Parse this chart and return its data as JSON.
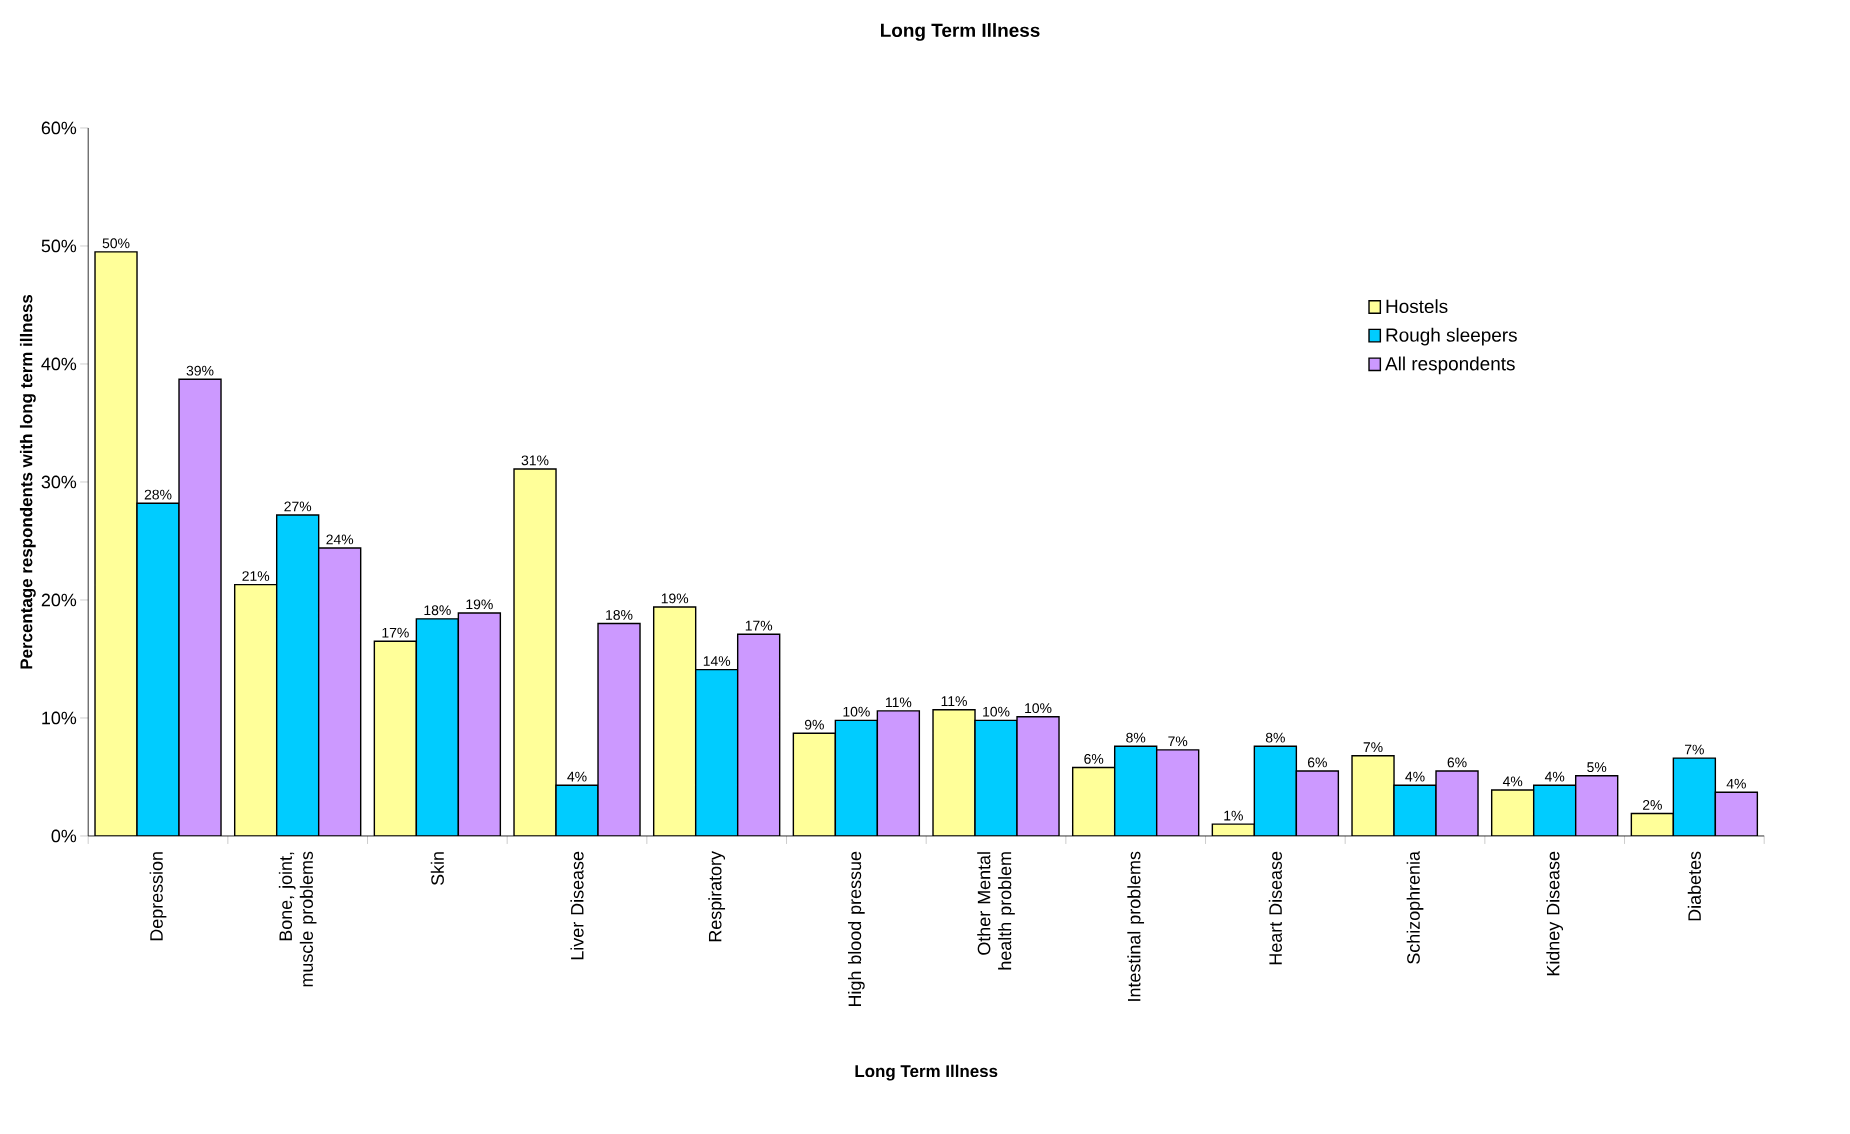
{
  "chart_data": {
    "type": "bar",
    "title": "Long Term Illness",
    "xlabel": "Long Term Illness",
    "ylabel": "Percentage respondents with long term illness",
    "categories": [
      "Depression",
      "Bone, joint, muscle problems",
      "Skin",
      "Liver Disease",
      "Respiratory",
      "High blood pressue",
      "Other Mental health problem",
      "Intestinal problems",
      "Heart Disease",
      "Schizophrenia",
      "Kidney Disease",
      "Diabetes"
    ],
    "series": [
      {
        "name": "Hostels",
        "color": "#ffff99",
        "values": [
          49.5,
          21.3,
          16.5,
          31.1,
          19.4,
          8.7,
          10.7,
          5.8,
          1.0,
          6.8,
          3.9,
          1.9
        ],
        "value_labels": [
          "50%",
          "21%",
          "17%",
          "31%",
          "19%",
          "9%",
          "11%",
          "6%",
          "1%",
          "7%",
          "4%",
          "2%"
        ]
      },
      {
        "name": "Rough sleepers",
        "color": "#00ccff",
        "values": [
          28.2,
          27.2,
          18.4,
          4.3,
          14.1,
          9.8,
          9.8,
          7.6,
          7.6,
          4.3,
          4.3,
          6.6
        ],
        "value_labels": [
          "28%",
          "27%",
          "18%",
          "4%",
          "14%",
          "10%",
          "10%",
          "8%",
          "8%",
          "4%",
          "4%",
          "7%"
        ]
      },
      {
        "name": "All respondents",
        "color": "#cc99ff",
        "values": [
          38.7,
          24.4,
          18.9,
          18.0,
          17.1,
          10.6,
          10.1,
          7.3,
          5.5,
          5.5,
          5.1,
          3.7
        ],
        "value_labels": [
          "39%",
          "24%",
          "19%",
          "18%",
          "17%",
          "11%",
          "10%",
          "7%",
          "6%",
          "6%",
          "5%",
          "4%"
        ]
      }
    ],
    "ylim": [
      0,
      60
    ],
    "yticks": [
      {
        "value": 0,
        "label": "0%"
      },
      {
        "value": 10,
        "label": "10%"
      },
      {
        "value": 20,
        "label": "20%"
      },
      {
        "value": 30,
        "label": "30%"
      },
      {
        "value": 40,
        "label": "40%"
      },
      {
        "value": 50,
        "label": "50%"
      },
      {
        "value": 60,
        "label": "60%"
      }
    ],
    "grid": false,
    "legend": "top right"
  }
}
